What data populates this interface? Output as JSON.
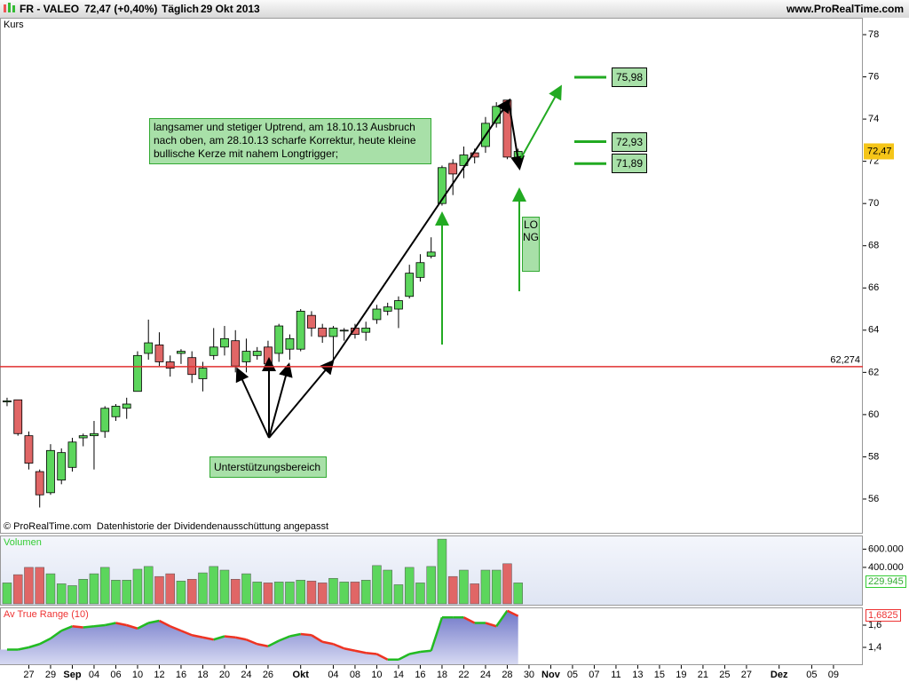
{
  "header": {
    "title": "FR - VALEO",
    "quote": "72,47 (+0,40%)",
    "period": "Täglich",
    "date": "29 Okt 2013",
    "site": "www.ProRealTime.com"
  },
  "footer": "© ProRealTime.com  Datenhistorie der Dividendenausschüttung angepasst",
  "annotations": {
    "comment": [
      "langsamer und stetiger Uptrend, am 18.10.13 Ausbruch",
      "nach oben, am 28.10.13 scharfe Korrektur, heute kleine",
      "bullische Kerze mit nahem Longtrigger;"
    ],
    "support": "Unterstützungsbereich",
    "signal": "LONG"
  },
  "chart_data": [
    {
      "type": "candlestick",
      "label": "Kurs",
      "up_color": "#5cd65c",
      "down_color": "#e06666",
      "open": [
        60.6,
        60.7,
        59.0,
        57.3,
        56.3,
        56.9,
        57.5,
        58.9,
        59.0,
        59.2,
        59.9,
        60.3,
        61.1,
        62.9,
        63.3,
        62.5,
        62.9,
        62.7,
        61.7,
        62.8,
        63.2,
        63.5,
        62.5,
        62.8,
        63.2,
        62.9,
        63.1,
        63.1,
        64.7,
        64.1,
        63.7,
        64.0,
        64.1,
        63.9,
        64.5,
        64.9,
        65.0,
        65.6,
        66.5,
        67.5,
        70.0,
        71.9,
        71.8,
        72.4,
        72.7,
        73.8,
        74.9,
        72.1
      ],
      "high": [
        60.8,
        60.7,
        59.2,
        57.4,
        58.6,
        58.4,
        58.9,
        59.1,
        59.7,
        60.4,
        60.5,
        60.8,
        63.0,
        64.5,
        63.9,
        62.8,
        63.1,
        63.0,
        62.5,
        64.1,
        64.2,
        64.0,
        63.6,
        63.2,
        63.5,
        64.3,
        63.8,
        65.0,
        64.9,
        64.3,
        64.2,
        64.1,
        64.3,
        64.4,
        65.2,
        65.3,
        65.6,
        67.1,
        67.6,
        68.4,
        71.8,
        72.1,
        72.7,
        72.6,
        74.1,
        74.8,
        74.9,
        72.6
      ],
      "low": [
        60.4,
        59.0,
        57.4,
        55.6,
        56.2,
        56.7,
        57.3,
        58.5,
        57.4,
        58.9,
        59.7,
        59.8,
        61.1,
        62.6,
        62.3,
        61.8,
        62.4,
        61.5,
        61.1,
        62.6,
        62.8,
        62.0,
        62.0,
        62.6,
        62.1,
        62.5,
        62.6,
        63.0,
        63.7,
        63.4,
        62.6,
        63.5,
        63.6,
        63.5,
        64.3,
        64.7,
        64.1,
        65.5,
        66.3,
        67.4,
        69.9,
        70.4,
        71.2,
        71.9,
        72.4,
        73.6,
        72.1,
        71.8
      ],
      "close": [
        60.65,
        59.1,
        57.7,
        56.2,
        58.3,
        58.2,
        58.7,
        59.0,
        59.1,
        60.3,
        60.4,
        60.5,
        62.8,
        63.4,
        62.5,
        62.2,
        63.0,
        61.9,
        62.2,
        63.2,
        63.6,
        62.3,
        63.0,
        63.0,
        62.4,
        64.2,
        63.6,
        64.9,
        64.1,
        63.7,
        64.1,
        64.0,
        63.8,
        64.1,
        65.0,
        65.1,
        65.4,
        66.7,
        67.2,
        67.7,
        71.7,
        71.4,
        72.3,
        72.2,
        73.8,
        74.6,
        72.2,
        72.47
      ],
      "xlim": [
        -0.65,
        78.7
      ],
      "xticks": [
        {
          "value": 2,
          "label": "27"
        },
        {
          "value": 4,
          "label": "29"
        },
        {
          "value": 6,
          "label": "Sep"
        },
        {
          "value": 8,
          "label": "04"
        },
        {
          "value": 10,
          "label": "06"
        },
        {
          "value": 12,
          "label": "10"
        },
        {
          "value": 14,
          "label": "12"
        },
        {
          "value": 16,
          "label": "16"
        },
        {
          "value": 18,
          "label": "18"
        },
        {
          "value": 20,
          "label": "20"
        },
        {
          "value": 22,
          "label": "24"
        },
        {
          "value": 24,
          "label": "26"
        },
        {
          "value": 27,
          "label": "Okt"
        },
        {
          "value": 30,
          "label": "04"
        },
        {
          "value": 32,
          "label": "08"
        },
        {
          "value": 34,
          "label": "10"
        },
        {
          "value": 36,
          "label": "14"
        },
        {
          "value": 38,
          "label": "16"
        },
        {
          "value": 40,
          "label": "18"
        },
        {
          "value": 42,
          "label": "22"
        },
        {
          "value": 44,
          "label": "24"
        },
        {
          "value": 46,
          "label": "28"
        },
        {
          "value": 48,
          "label": "30"
        },
        {
          "value": 50,
          "label": "Nov"
        },
        {
          "value": 52,
          "label": "05"
        },
        {
          "value": 54,
          "label": "07"
        },
        {
          "value": 56,
          "label": "11"
        },
        {
          "value": 58,
          "label": "13"
        },
        {
          "value": 60,
          "label": "15"
        },
        {
          "value": 62,
          "label": "19"
        },
        {
          "value": 64,
          "label": "21"
        },
        {
          "value": 66,
          "label": "25"
        },
        {
          "value": 68,
          "label": "27"
        },
        {
          "value": 71,
          "label": "Dez"
        },
        {
          "value": 74,
          "label": "05"
        },
        {
          "value": 76,
          "label": "09"
        }
      ],
      "ylim": [
        54.4,
        78.8
      ],
      "yticks": [
        56,
        58,
        60,
        62,
        64,
        66,
        68,
        70,
        72,
        74,
        76,
        78
      ],
      "support_line": {
        "value": 62.274,
        "label": "62,274",
        "color": "#e03030"
      },
      "last_price": {
        "value": 72.47,
        "label": "72,47"
      },
      "targets": [
        {
          "value": 75.98,
          "label": "75,98"
        },
        {
          "value": 72.93,
          "label": "72,93"
        },
        {
          "value": 71.89,
          "label": "71,89"
        }
      ]
    },
    {
      "type": "bar",
      "label": "Volumen",
      "values": [
        230000,
        320000,
        400000,
        400000,
        330000,
        220000,
        200000,
        270000,
        330000,
        400000,
        260000,
        260000,
        380000,
        410000,
        300000,
        330000,
        250000,
        270000,
        340000,
        410000,
        370000,
        270000,
        330000,
        240000,
        230000,
        240000,
        240000,
        260000,
        250000,
        230000,
        280000,
        240000,
        240000,
        260000,
        420000,
        370000,
        210000,
        400000,
        230000,
        410000,
        710000,
        300000,
        370000,
        220000,
        370000,
        370000,
        440000,
        229945
      ],
      "last_label": "229.945",
      "ylim": [
        -10000,
        750000
      ],
      "yticks": [
        {
          "value": 600000,
          "label": "600.000"
        },
        {
          "value": 400000,
          "label": "400.000"
        }
      ]
    },
    {
      "type": "area",
      "label": "Av True Range (10)",
      "up_color": "#22bb22",
      "down_color": "#ee3322",
      "values": [
        1.38,
        1.38,
        1.4,
        1.43,
        1.48,
        1.55,
        1.59,
        1.58,
        1.59,
        1.6,
        1.62,
        1.6,
        1.57,
        1.62,
        1.64,
        1.59,
        1.55,
        1.51,
        1.49,
        1.47,
        1.5,
        1.49,
        1.47,
        1.43,
        1.41,
        1.46,
        1.5,
        1.52,
        1.51,
        1.45,
        1.43,
        1.39,
        1.37,
        1.35,
        1.34,
        1.29,
        1.29,
        1.34,
        1.36,
        1.37,
        1.67,
        1.67,
        1.67,
        1.62,
        1.62,
        1.59,
        1.73,
        1.6825
      ],
      "last_label": "1,6825",
      "ylim": [
        1.248,
        1.76
      ],
      "yticks": [
        {
          "value": 1.6,
          "label": "1,6"
        },
        {
          "value": 1.4,
          "label": "1,4"
        }
      ]
    }
  ]
}
